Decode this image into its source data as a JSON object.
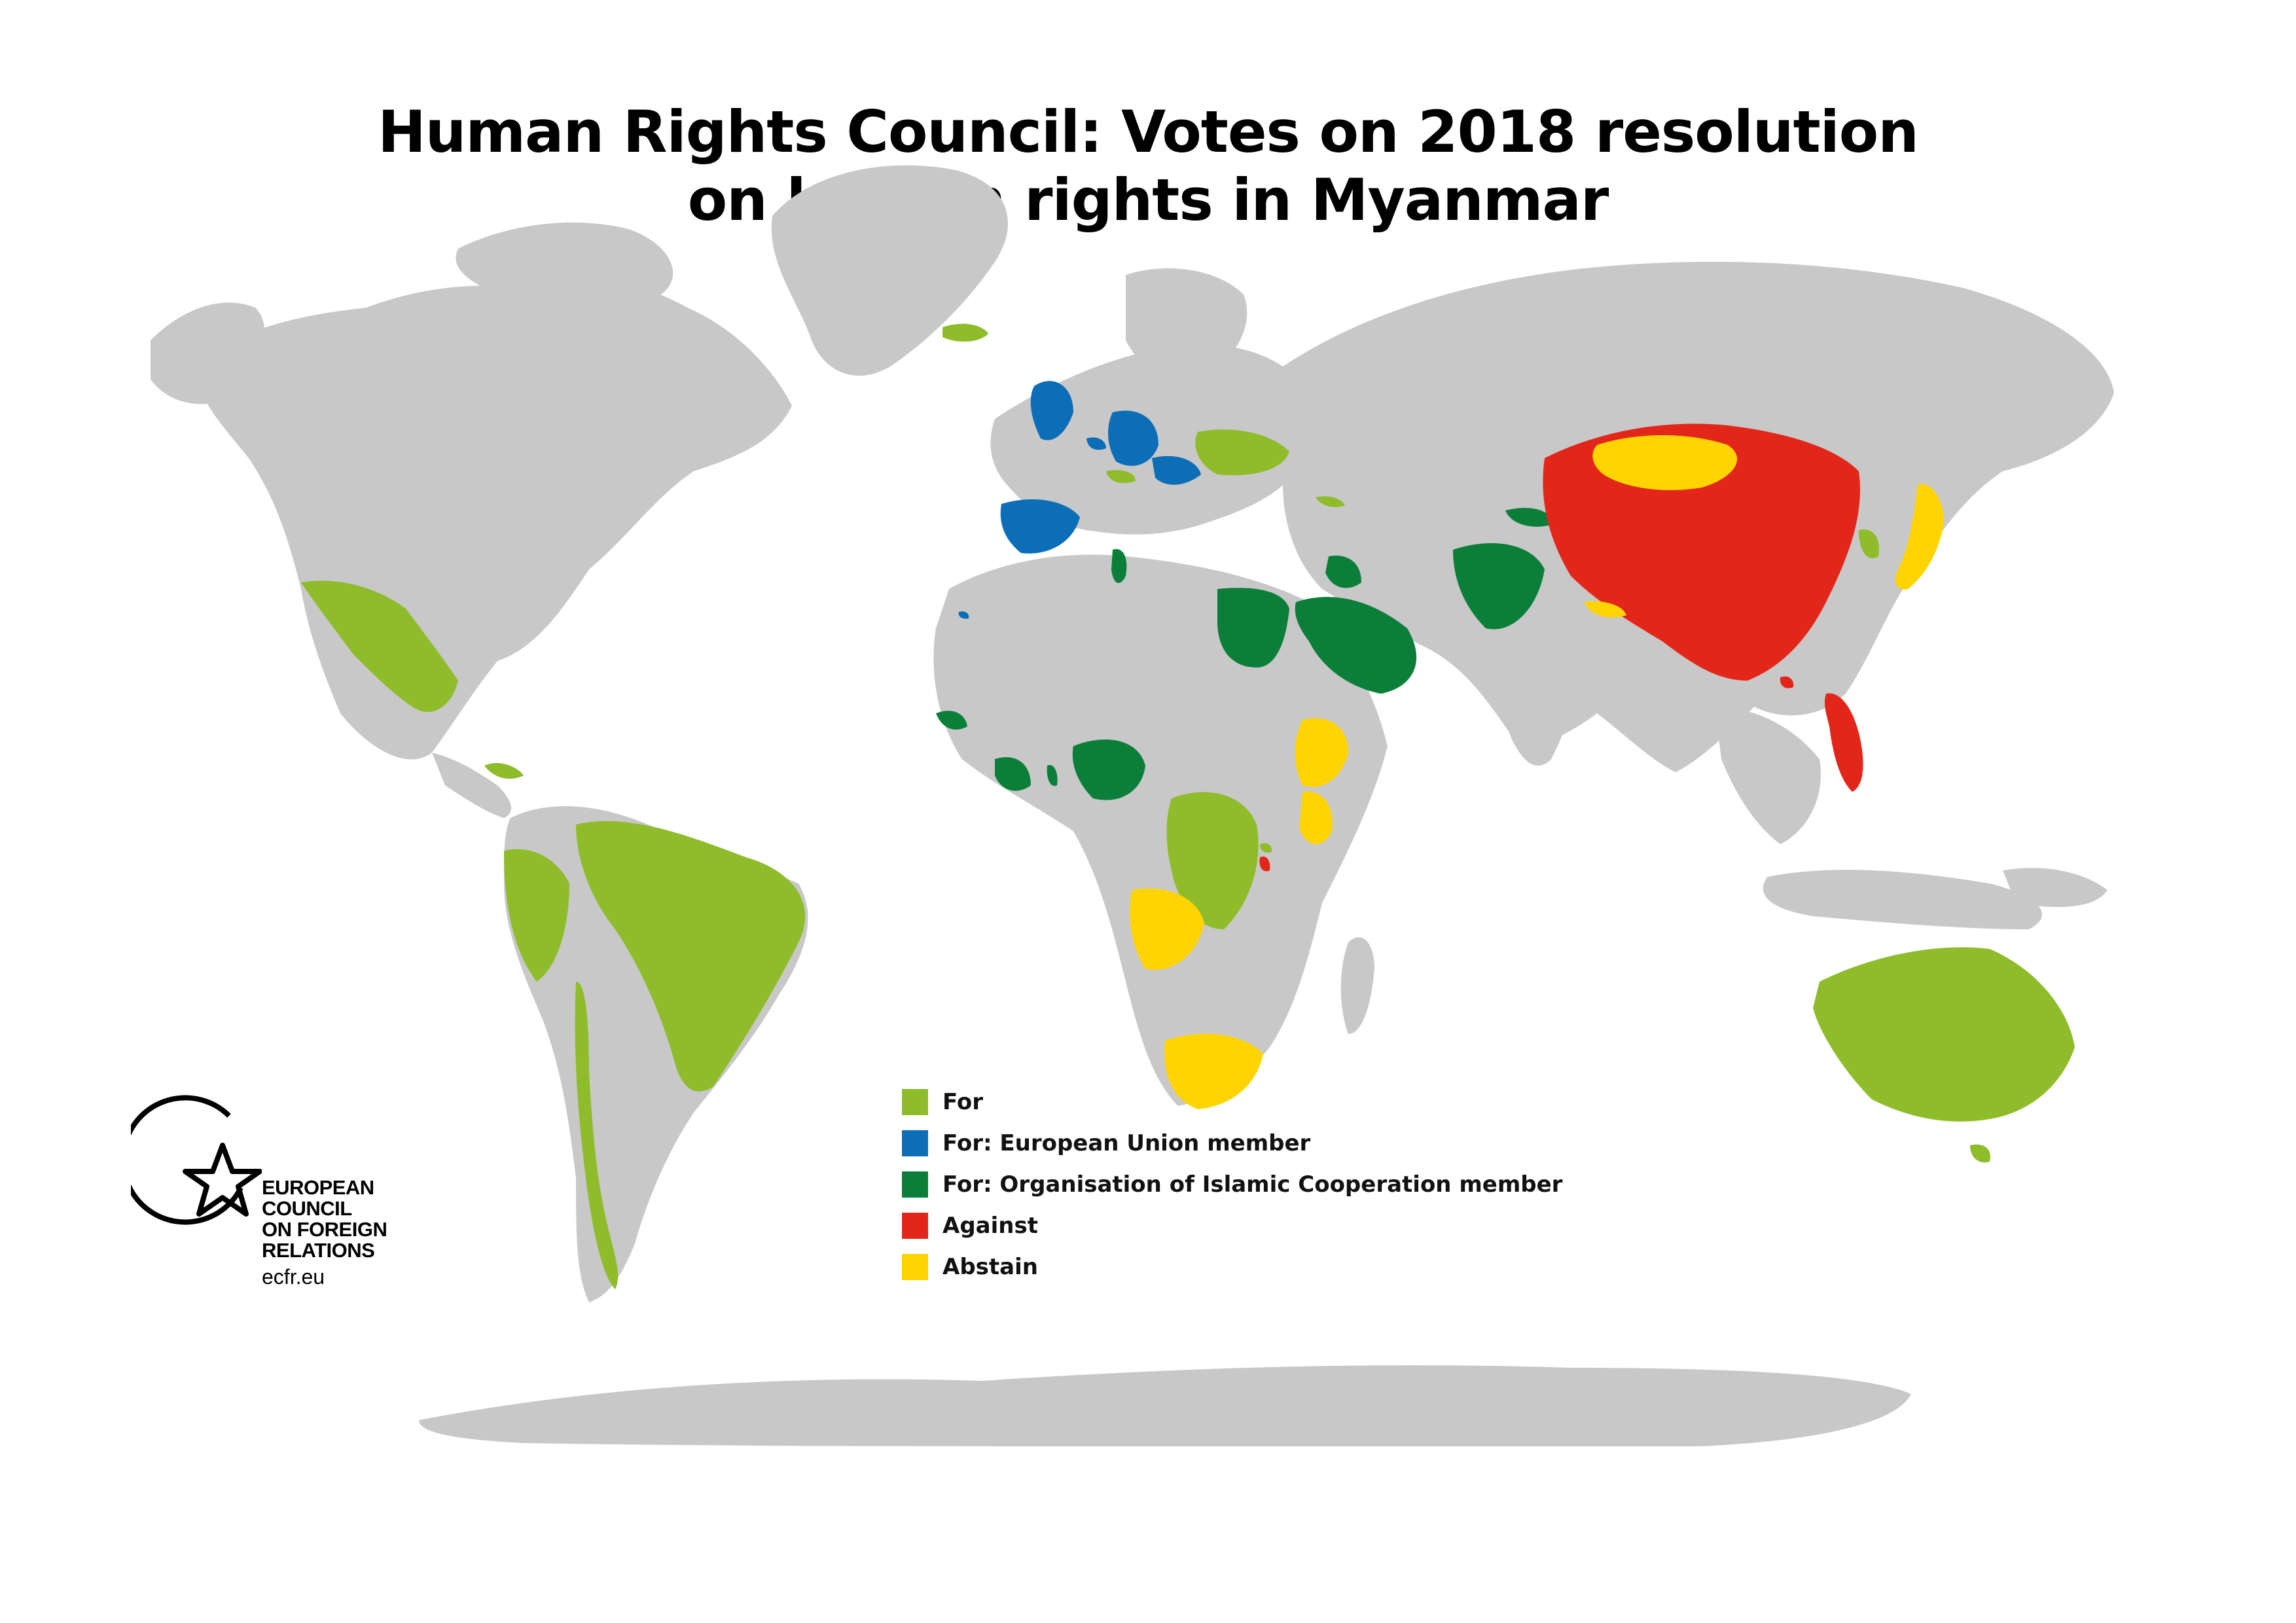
{
  "title": {
    "line1": "Human Rights Council: Votes on 2018 resolution",
    "line2": "on human rights in Myanmar"
  },
  "colors": {
    "for": "#8ebc2b",
    "for_eu": "#0d6eb8",
    "for_oic": "#0b7f3a",
    "against": "#e2271a",
    "abstain": "#ffd400",
    "land": "#c8c8c8",
    "background": "#ffffff"
  },
  "legend": [
    {
      "label": "For",
      "color": "#8ebc2b"
    },
    {
      "label": "For: European Union member",
      "color": "#0d6eb8"
    },
    {
      "label": "For: Organisation of Islamic Cooperation member",
      "color": "#0b7f3a"
    },
    {
      "label": "Against",
      "color": "#e2271a"
    },
    {
      "label": "Abstain",
      "color": "#ffd400"
    }
  ],
  "logo": {
    "icon": "star-in-circle-icon",
    "line1": "EUROPEAN",
    "line2": "COUNCIL",
    "line3": "ON FOREIGN",
    "line4": "RELATIONS",
    "url": "ecfr.eu"
  }
}
